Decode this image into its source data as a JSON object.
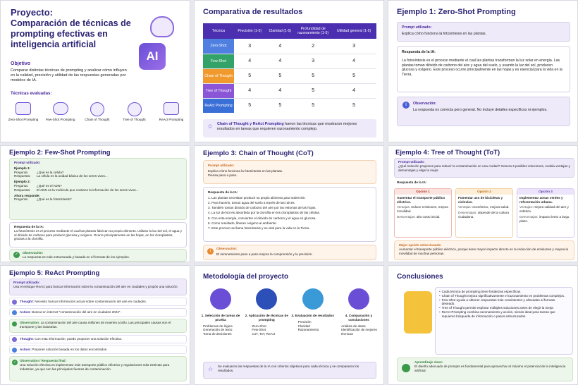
{
  "p1": {
    "title": "Proyecto:",
    "subtitle": "Comparación de técnicas de prompting efectivas en inteligencia artificial",
    "objective_label": "Objetivo",
    "objective_text": "Comparar distintas técnicas de prompting y analizar cómo influyen en la calidad, precisión y utilidad de las respuestas generadas por modelos de IA.",
    "techniques_label": "Técnicas evaluadas:",
    "ai_badge": "AI",
    "techniques": [
      "Zero-Shot Prompting",
      "Few-Shot Prompting",
      "Chain of Thought",
      "Tree of Thought",
      "ReAct Prompting"
    ]
  },
  "p2": {
    "title": "Comparativa de resultados",
    "headers": [
      "Técnica",
      "Precisión (1-5)",
      "Claridad (1-5)",
      "Profundidad de razonamiento (1-5)",
      "Utilidad general (1-5)"
    ],
    "rows": [
      [
        "Zero-Shot",
        "3",
        "4",
        "2",
        "3"
      ],
      [
        "Few-Shot",
        "4",
        "4",
        "3",
        "4"
      ],
      [
        "Chain of Thought",
        "5",
        "5",
        "5",
        "5"
      ],
      [
        "Tree of Thought",
        "4",
        "4",
        "5",
        "4"
      ],
      [
        "ReAct Prompting",
        "5",
        "5",
        "5",
        "5"
      ]
    ],
    "note_bold": "Chain of Thought y ReAct Prompting",
    "note_rest": " fueron las técnicas que mostraron mejores resultados en tareas que requieren razonamiento complejo."
  },
  "p3": {
    "title": "Ejemplo 1: Zero-Shot Prompting",
    "prompt_label": "Prompt utilizado:",
    "prompt": "Explica cómo funciona la fotosíntesis en las plantas.",
    "resp_label": "Respuesta de la IA:",
    "resp": "La fotosíntesis es el proceso mediante el cual las plantas transforman la luz solar en energía. Las plantas toman dióxido de carbono del aire y agua del suelo, y usando la luz del sol, producen glucosa y oxígeno. Este proceso ocurre principalmente en las hojas y es esencial para la vida en la Tierra.",
    "obs_label": "Observación:",
    "obs": "La respuesta es correcta pero general. No incluye detalles específicos ni ejemplos."
  },
  "p4": {
    "title": "Ejemplo 2: Few-Shot Prompting",
    "prompt_label": "Prompt utilizado:",
    "e1": "Ejemplo 1:",
    "q1k": "Pregunta:",
    "q1": "¿Qué es la célula?",
    "r1k": "Respuesta:",
    "r1": "La célula es la unidad básica de los seres vivos...",
    "e2": "Ejemplo 2:",
    "q2k": "Pregunta:",
    "q2": "¿Qué es el ADN?",
    "r2k": "Respuesta:",
    "r2": "El ADN es la molécula que contiene la información de los seres vivos...",
    "now": "Ahora responde:",
    "q3k": "Pregunta:",
    "q3": "¿Qué es la fotosíntesis?",
    "resp_label": "Respuesta de la IA:",
    "resp": "La fotosíntesis es el proceso mediante el cual las plantas fabrican su propio alimento. Utilizan la luz del sol, el agua y el dióxido de carbono para producir glucosa y oxígeno. Ocurre principalmente en las hojas, en los cloroplastos, gracias a la clorofila.",
    "obs_label": "Observación:",
    "obs": "La respuesta es más estructurada y basada en el formato de los ejemplos."
  },
  "p5": {
    "title": "Ejemplo 3: Chain of Thought (CoT)",
    "prompt_label": "Prompt utilizado:",
    "prompt1": "Explica cómo funciona la fotosíntesis en las plantas.",
    "prompt2": "Piensa paso a paso.",
    "resp_label": "Respuesta de la IA:",
    "steps": [
      "1. Las plantas necesitan producir su propio alimento para sobrevivir.",
      "2. Para hacerlo, toman agua del suelo a través de las raíces.",
      "3. También toman dióxido de carbono del aire por las estomas de las hojas.",
      "4. La luz del sol es absorbida por la clorofila en los cloroplastos de las células.",
      "5. Con esta energía, convierten el dióxido de carbono y el agua en glucosa.",
      "6. Como resultado, liberan oxígeno al ambiente.",
      "7. Este proceso se llama fotosíntesis y es vital para la vida en la Tierra."
    ],
    "obs_label": "Observación:",
    "obs": "El razonamiento paso a paso mejora la comprensión y la precisión."
  },
  "p6": {
    "title": "Ejemplo 4: Tree of Thought (ToT)",
    "prompt_label": "Prompt utilizado:",
    "prompt": "¿Qué solución propones para reducir la contaminación en una ciudad? Genera 3 posibles soluciones, evalúa ventajas y desventajas y elige la mejor.",
    "resp_label": "Respuesta de la IA:",
    "options": [
      {
        "name": "Opción 1",
        "desc": "Aumentar el transporte público eléctrico.",
        "adv_k": "Ventajas:",
        "adv": "reduce emisiones, mejora movilidad.",
        "dis_k": "Desventajas:",
        "dis": "alto costo inicial."
      },
      {
        "name": "Opción 2",
        "desc": "Fomentar uso de bicicletas y ciclovías.",
        "adv_k": "Ventajas:",
        "adv": "económico, mejora salud.",
        "dis_k": "Desventajas:",
        "dis": "depende de la cultura ciudadana."
      },
      {
        "name": "Opción 3",
        "desc": "Implementar zonas verdes y reforestación urbana.",
        "adv_k": "Ventajas:",
        "adv": "mejora calidad del aire y estética.",
        "dis_k": "Desventajas:",
        "dis": "impacto lento a largo plazo."
      }
    ],
    "best_label": "Mejor opción seleccionada:",
    "best": "Aumentar el transporte público eléctrico, porque tiene mayor impacto directo en la reducción de emisiones y mejora la movilidad de muchas personas."
  },
  "p7": {
    "title": "Ejemplo 5: ReAct Prompting",
    "prompt_label": "Prompt utilizado:",
    "prompt": "Usa el enfoque ReAct para buscar información sobre la contaminación del aire en ciudades y propón una solución.",
    "items": [
      {
        "k": "Thought:",
        "v": "Necesito buscar información actual sobre contaminación del aire en ciudades."
      },
      {
        "k": "Action:",
        "v": "Buscar en internet \"contaminación del aire en ciudades 2024\"."
      },
      {
        "k": "Observation:",
        "v": "La contaminación del aire causa millones de muertes al año. Las principales causas son el transporte y las industrias."
      },
      {
        "k": "Thought:",
        "v": "Con esta información, puedo proponer una solución efectiva."
      },
      {
        "k": "Action:",
        "v": "Proponer solución basada en los datos encontrados."
      }
    ],
    "final_k": "Observation / Respuesta final:",
    "final": "Una solución efectiva es implementar más transporte público eléctrico y regulaciones más estrictas para industrias, ya que son las principales fuentes de contaminación."
  },
  "p8": {
    "title": "Metodología del proyecto",
    "steps": [
      {
        "t": "1. Selección de tareas de prueba",
        "b": [
          "Problemas de lógica",
          "Generación de texto",
          "Toma de decisiones"
        ]
      },
      {
        "t": "2. Aplicación de técnicas de prompting",
        "b": [
          "Zero-Shot",
          "Few-Shot",
          "CoT, ToT, ReAct"
        ]
      },
      {
        "t": "3. Evaluación de resultados",
        "b": [
          "Precisión",
          "Claridad",
          "Razonamiento"
        ]
      },
      {
        "t": "4. Comparación y conclusiones",
        "b": [
          "Análisis de datos",
          "Identificación de mejores técnicas"
        ]
      }
    ],
    "note": "Se evaluaron las respuestas de la IA con criterios objetivos para cada técnica y se compararon los resultados."
  },
  "p9": {
    "title": "Conclusiones",
    "bullets": [
      "Cada técnica de prompting tiene fortalezas específicas.",
      "Chain of Thought mejora significativamente el razonamiento en problemas complejos.",
      "Few-Shot ayuda a obtener respuestas más consistentes y alineadas al formato deseado.",
      "Tree of Thought permite explorar múltiples soluciones antes de elegir la mejor.",
      "ReAct Prompting combina razonamiento y acción, siendo ideal para tareas que requieren búsqueda de información o pasos estructurados."
    ],
    "learn_label": "Aprendizaje clave:",
    "learn": "El diseño adecuado de prompts es fundamental para aprovechar al máximo el potencial de la inteligencia artificial."
  }
}
